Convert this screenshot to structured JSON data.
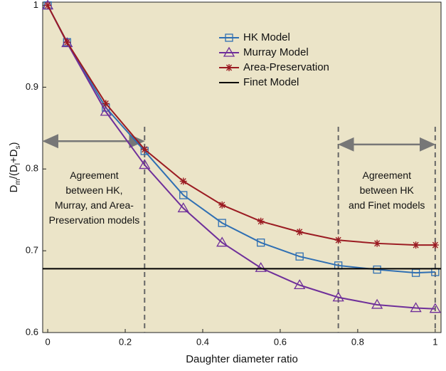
{
  "chart_data": {
    "type": "line",
    "xlabel": "Daughter diameter ratio",
    "ylabel_parts": [
      "D",
      "m",
      "/(D",
      "l",
      "+D",
      "s",
      ")"
    ],
    "x": [
      0,
      0.05,
      0.15,
      0.25,
      0.35,
      0.45,
      0.55,
      0.65,
      0.75,
      0.85,
      0.95,
      1
    ],
    "xlim": [
      -0.013,
      1.015
    ],
    "xticks": [
      0,
      0.2,
      0.4,
      0.6,
      0.8,
      1
    ],
    "ylim": [
      0.6,
      1.004
    ],
    "yticks": [
      0.6,
      0.7,
      0.8,
      0.9,
      1
    ],
    "legend": "top-center",
    "series": [
      {
        "name": "HK Model",
        "color": "#2f6fb3",
        "marker": "square",
        "values": [
          1.0,
          0.955,
          0.875,
          0.822,
          0.768,
          0.734,
          0.71,
          0.693,
          0.682,
          0.677,
          0.673,
          0.674
        ]
      },
      {
        "name": "Murray Model",
        "color": "#6f2f9a",
        "marker": "triangle",
        "values": [
          1.0,
          0.954,
          0.87,
          0.805,
          0.752,
          0.71,
          0.679,
          0.658,
          0.643,
          0.634,
          0.63,
          0.629
        ]
      },
      {
        "name": "Area-Preservation",
        "color": "#9b1b22",
        "marker": "asterisk",
        "values": [
          1.0,
          0.955,
          0.88,
          0.824,
          0.785,
          0.756,
          0.736,
          0.723,
          0.713,
          0.709,
          0.707,
          0.707
        ]
      },
      {
        "name": "Finet Model",
        "color": "#000000",
        "marker": "none",
        "x": [
          -0.013,
          1.015
        ],
        "values": [
          0.678,
          0.678
        ]
      }
    ],
    "vlines": [
      0.25,
      0.75,
      1
    ],
    "arrows": [
      {
        "x": [
          -0.013,
          0.25
        ],
        "y": 0.834
      },
      {
        "x": [
          0.75,
          1
        ],
        "y": 0.83
      }
    ],
    "annotations": [
      {
        "x": 0.12,
        "y": 0.8,
        "lines": [
          "Agreement",
          "between HK,",
          "Murray, and Area-",
          "Preservation models"
        ]
      },
      {
        "x": 0.875,
        "y": 0.8,
        "lines": [
          "Agreement",
          "between HK",
          "and Finet models"
        ]
      }
    ]
  }
}
